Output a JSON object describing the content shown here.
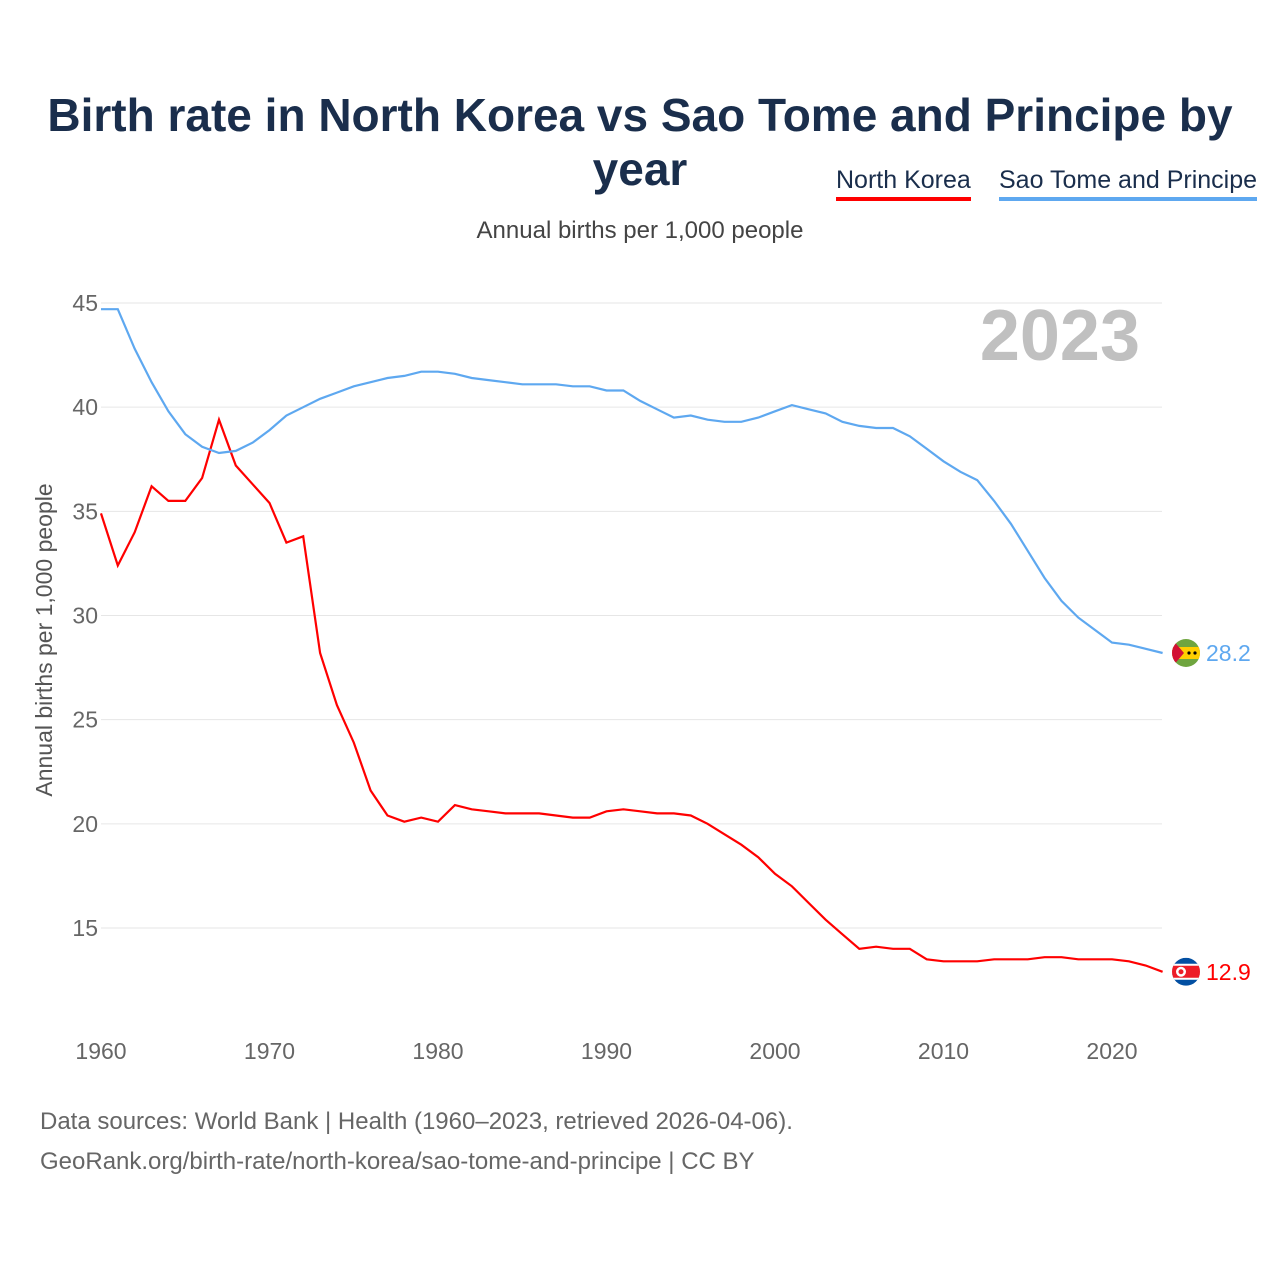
{
  "title": "Birth rate in North Korea vs Sao Tome and Principe by year",
  "legend": [
    "North Korea",
    "Sao Tome and Principe"
  ],
  "subtitle": "Annual births per 1,000 people",
  "year_label": "2023",
  "sources": [
    "Data sources: World Bank | Health (1960–2023, retrieved 2026-04-06).",
    "GeoRank.org/birth-rate/north-korea/sao-tome-and-principe | CC BY"
  ],
  "chart_data": {
    "type": "line",
    "title": "Birth rate in North Korea vs Sao Tome and Principe by year",
    "xlabel": "",
    "ylabel": "Annual births per 1,000 people",
    "xlim": [
      1960,
      2023
    ],
    "ylim": [
      10,
      45
    ],
    "xticks": [
      1960,
      1970,
      1980,
      1990,
      2000,
      2010,
      2020
    ],
    "yticks": [
      15,
      20,
      25,
      30,
      35,
      40,
      45
    ],
    "grid": true,
    "legend_position": "top-right",
    "x_start": 1960,
    "series": [
      {
        "name": "North Korea",
        "color": "#ff0000",
        "end_label": "12.9",
        "values": [
          34.9,
          32.4,
          34.0,
          36.2,
          35.5,
          35.5,
          36.6,
          39.4,
          37.2,
          36.3,
          35.4,
          33.5,
          33.8,
          28.2,
          25.7,
          23.9,
          21.6,
          20.4,
          20.1,
          20.3,
          20.1,
          20.9,
          20.7,
          20.6,
          20.5,
          20.5,
          20.5,
          20.4,
          20.3,
          20.3,
          20.6,
          20.7,
          20.6,
          20.5,
          20.5,
          20.4,
          20.0,
          19.5,
          19.0,
          18.4,
          17.6,
          17.0,
          16.2,
          15.4,
          14.7,
          14.0,
          14.1,
          14.0,
          14.0,
          13.5,
          13.4,
          13.4,
          13.4,
          13.5,
          13.5,
          13.5,
          13.6,
          13.6,
          13.5,
          13.5,
          13.5,
          13.4,
          13.2,
          12.9
        ]
      },
      {
        "name": "Sao Tome and Principe",
        "color": "#5ea8f0",
        "end_label": "28.2",
        "values": [
          44.7,
          44.7,
          42.8,
          41.2,
          39.8,
          38.7,
          38.1,
          37.8,
          37.9,
          38.3,
          38.9,
          39.6,
          40.0,
          40.4,
          40.7,
          41.0,
          41.2,
          41.4,
          41.5,
          41.7,
          41.7,
          41.6,
          41.4,
          41.3,
          41.2,
          41.1,
          41.1,
          41.1,
          41.0,
          41.0,
          40.8,
          40.8,
          40.3,
          39.9,
          39.5,
          39.6,
          39.4,
          39.3,
          39.3,
          39.5,
          39.8,
          40.1,
          39.9,
          39.7,
          39.3,
          39.1,
          39.0,
          39.0,
          38.6,
          38.0,
          37.4,
          36.9,
          36.5,
          35.5,
          34.4,
          33.1,
          31.8,
          30.7,
          29.9,
          29.3,
          28.7,
          28.6,
          28.4,
          28.2
        ]
      }
    ]
  }
}
